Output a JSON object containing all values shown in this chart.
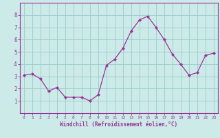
{
  "x": [
    0,
    1,
    2,
    3,
    4,
    5,
    6,
    7,
    8,
    9,
    10,
    11,
    12,
    13,
    14,
    15,
    16,
    17,
    18,
    19,
    20,
    21,
    22,
    23
  ],
  "y": [
    3.1,
    3.2,
    2.8,
    1.8,
    2.1,
    1.3,
    1.3,
    1.3,
    1.0,
    1.5,
    3.9,
    4.4,
    5.3,
    6.7,
    7.6,
    7.9,
    7.0,
    6.0,
    4.8,
    4.0,
    3.1,
    3.3,
    4.7,
    4.9
  ],
  "line_color": "#993399",
  "marker_color": "#993399",
  "bg_color": "#cceae7",
  "grid_color": "#99cccc",
  "axis_color": "#993399",
  "tick_color": "#993399",
  "xlabel": "Windchill (Refroidissement éolien,°C)",
  "ylim": [
    0,
    9
  ],
  "xlim_min": -0.5,
  "xlim_max": 23.5,
  "yticks": [
    1,
    2,
    3,
    4,
    5,
    6,
    7,
    8
  ],
  "xticks": [
    0,
    1,
    2,
    3,
    4,
    5,
    6,
    7,
    8,
    9,
    10,
    11,
    12,
    13,
    14,
    15,
    16,
    17,
    18,
    19,
    20,
    21,
    22,
    23
  ],
  "xlabel_fontsize": 5.5,
  "xtick_fontsize": 4.5,
  "ytick_fontsize": 5.5
}
